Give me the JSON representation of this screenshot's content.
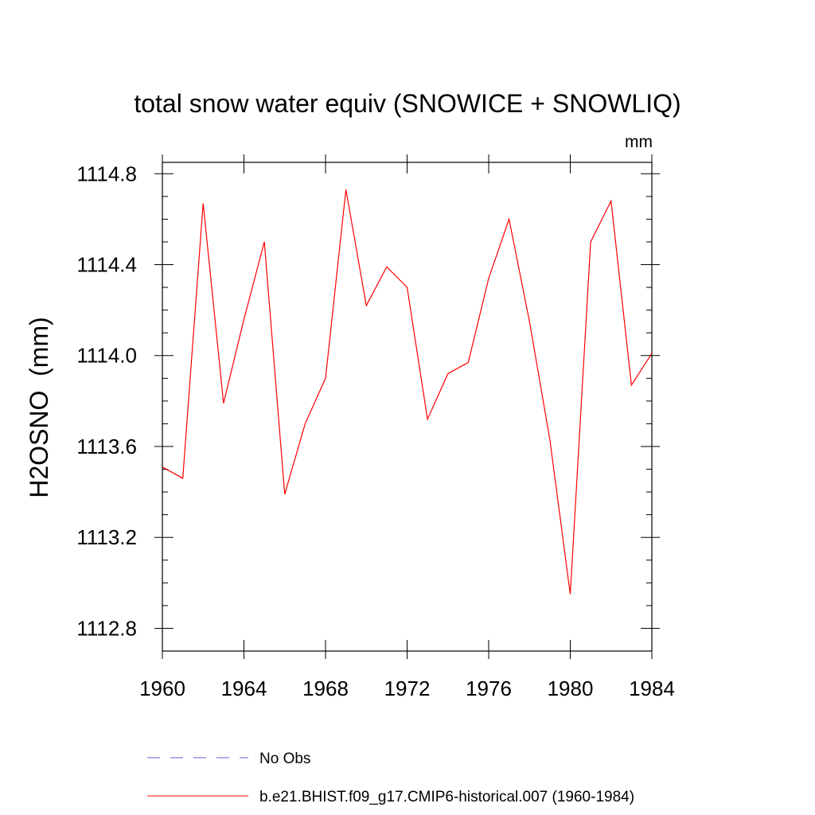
{
  "chart_data": {
    "type": "line",
    "title": "total snow water equiv (SNOWICE + SNOWLIQ)",
    "units": "mm",
    "ylabel": "H2OSNO  (mm)",
    "xlabel": "",
    "xlim": [
      1960,
      1984
    ],
    "ylim": [
      1112.7,
      1114.85
    ],
    "x_ticks": [
      1960,
      1964,
      1968,
      1972,
      1976,
      1980,
      1984
    ],
    "x_tick_labels": [
      "1960",
      "1964",
      "1968",
      "1972",
      "1976",
      "1980",
      "1984"
    ],
    "y_ticks": [
      1112.8,
      1113.2,
      1113.6,
      1114.0,
      1114.4,
      1114.8
    ],
    "y_tick_labels": [
      "1112.8",
      "1113.2",
      "1113.6",
      "1114.0",
      "1114.4",
      "1114.8"
    ],
    "grid": false,
    "legend_position": "bottom",
    "x": [
      1960,
      1961,
      1962,
      1963,
      1964,
      1965,
      1966,
      1967,
      1968,
      1969,
      1970,
      1971,
      1972,
      1973,
      1974,
      1975,
      1976,
      1977,
      1978,
      1979,
      1980,
      1981,
      1982,
      1983,
      1984
    ],
    "series": [
      {
        "name": "b.e21.BHIST.f09_g17.CMIP6-historical.007 (1960-1984)",
        "color": "#ff0000",
        "dash": "solid",
        "values": [
          1113.51,
          1113.46,
          1114.67,
          1113.79,
          1114.16,
          1114.5,
          1113.39,
          1113.7,
          1113.9,
          1114.73,
          1114.22,
          1114.39,
          1114.3,
          1113.72,
          1113.92,
          1113.97,
          1114.34,
          1114.6,
          1114.15,
          1113.63,
          1112.95,
          1114.5,
          1114.68,
          1113.87,
          1114.01
        ]
      }
    ],
    "legend": [
      {
        "label": "No Obs",
        "color": "#6a5acd",
        "dash": "dashed"
      },
      {
        "label": "b.e21.BHIST.f09_g17.CMIP6-historical.007 (1960-1984)",
        "color": "#ff0000",
        "dash": "solid"
      }
    ]
  }
}
